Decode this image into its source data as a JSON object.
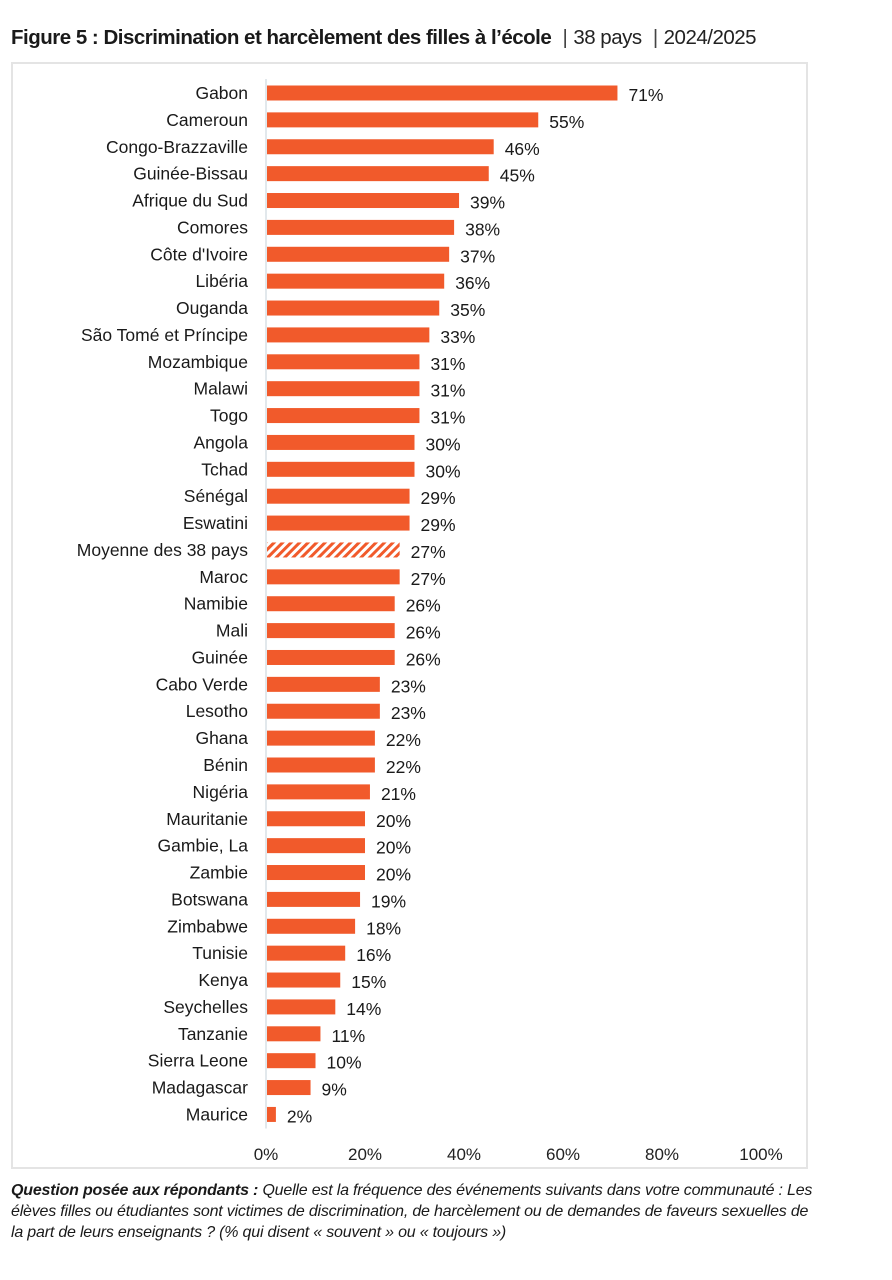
{
  "header": {
    "title_bold": "Figure 5 : Discrimination et harcèlement des filles à l’école",
    "separator": "|",
    "countries_count": "38 pays",
    "period": "2024/2025"
  },
  "chart_data": {
    "type": "bar",
    "orientation": "horizontal",
    "title": "Figure 5 : Discrimination et harcèlement des filles à l’école | 38 pays | 2024/2025",
    "xlabel": "",
    "ylabel": "",
    "xlim": [
      0,
      100
    ],
    "x_ticks": [
      "0%",
      "20%",
      "40%",
      "60%",
      "80%",
      "100%"
    ],
    "x_tick_values": [
      0,
      20,
      40,
      60,
      80,
      100
    ],
    "grid": false,
    "bar_color": "#F15A2B",
    "average_style": "hatched",
    "categories": [
      "Gabon",
      "Cameroun",
      "Congo-Brazzaville",
      "Guinée-Bissau",
      "Afrique du Sud",
      "Comores",
      "Côte d'Ivoire",
      "Libéria",
      "Ouganda",
      "São Tomé et Príncipe",
      "Mozambique",
      "Malawi",
      "Togo",
      "Angola",
      "Tchad",
      "Sénégal",
      "Eswatini",
      "Moyenne des 38 pays",
      "Maroc",
      "Namibie",
      "Mali",
      "Guinée",
      "Cabo Verde",
      "Lesotho",
      "Ghana",
      "Bénin",
      "Nigéria",
      "Mauritanie",
      "Gambie, La",
      "Zambie",
      "Botswana",
      "Zimbabwe",
      "Tunisie",
      "Kenya",
      "Seychelles",
      "Tanzanie",
      "Sierra Leone",
      "Madagascar",
      "Maurice"
    ],
    "values": [
      71,
      55,
      46,
      45,
      39,
      38,
      37,
      36,
      35,
      33,
      31,
      31,
      31,
      30,
      30,
      29,
      29,
      27,
      27,
      26,
      26,
      26,
      23,
      23,
      22,
      22,
      21,
      20,
      20,
      20,
      19,
      18,
      16,
      15,
      14,
      11,
      10,
      9,
      2
    ],
    "value_labels": [
      "71%",
      "55%",
      "46%",
      "45%",
      "39%",
      "38%",
      "37%",
      "36%",
      "35%",
      "33%",
      "31%",
      "31%",
      "31%",
      "30%",
      "30%",
      "29%",
      "29%",
      "27%",
      "27%",
      "26%",
      "26%",
      "26%",
      "23%",
      "23%",
      "22%",
      "22%",
      "21%",
      "20%",
      "20%",
      "20%",
      "19%",
      "18%",
      "16%",
      "15%",
      "14%",
      "11%",
      "10%",
      "9%",
      "2%"
    ],
    "highlight_index": 17
  },
  "footnote": {
    "question_label": "Question posée aux répondants :",
    "question_text": "Quelle est la fréquence des événements suivants dans votre communauté : Les élèves filles ou étudiantes sont victimes de discrimination, de harcèlement ou de demandes de faveurs sexuelles de la part de leurs enseignants ? (% qui disent « souvent » ou « toujours »)"
  }
}
